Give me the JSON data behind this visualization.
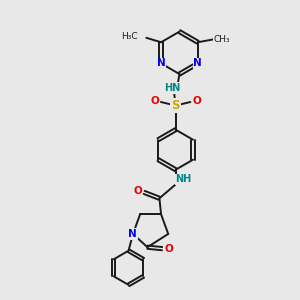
{
  "bg_color": "#e8e8e8",
  "atom_colors": {
    "C": "#1a1a1a",
    "N": "#0000ee",
    "O": "#ee0000",
    "S": "#ccaa00",
    "H": "#008888"
  },
  "bond_color": "#1a1a1a",
  "bond_width": 1.4,
  "fig_w": 3.0,
  "fig_h": 3.0,
  "dpi": 100,
  "xlim": [
    0,
    10
  ],
  "ylim": [
    0,
    10
  ]
}
